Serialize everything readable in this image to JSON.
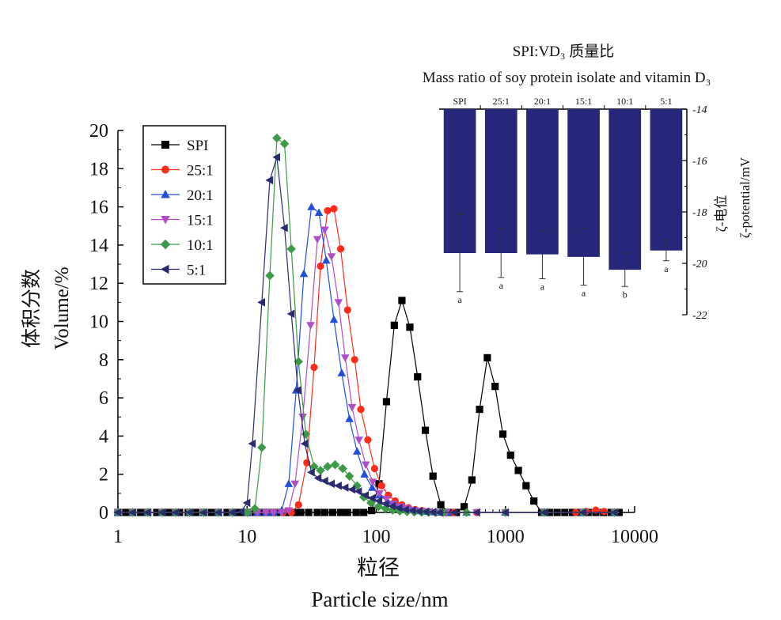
{
  "chart_data": [
    {
      "type": "line",
      "xlabel_zh": "粒径",
      "xlabel": "Particle size/nm",
      "ylabel_zh": "体积分数",
      "ylabel": "Volume/%",
      "xscale": "log",
      "xlim": [
        1,
        10000
      ],
      "ylim": [
        0,
        20
      ],
      "xticks": [
        "1",
        "10",
        "100",
        "1000",
        "10000"
      ],
      "yticks": [
        "0",
        "2",
        "4",
        "6",
        "8",
        "10",
        "12",
        "14",
        "16",
        "18",
        "20"
      ],
      "legend": "top-left",
      "series": [
        {
          "name": "SPI",
          "color": "#000000",
          "marker": "square",
          "x": [
            1,
            1.15,
            1.3,
            1.5,
            1.7,
            2,
            2.3,
            2.6,
            3,
            3.5,
            4,
            4.6,
            5.3,
            6,
            7,
            8,
            9,
            10,
            11.5,
            13,
            15,
            17,
            20,
            23,
            26,
            30,
            35,
            40,
            46,
            53,
            60,
            70,
            80,
            92,
            105,
            120,
            138,
            158,
            182,
            209,
            240,
            275,
            316,
            363,
            417,
            479,
            550,
            631,
            724,
            832,
            955,
            1096,
            1259,
            1445,
            1660,
            1905,
            2188,
            2512,
            2884,
            3311,
            3802,
            4365,
            5012,
            5754,
            6607,
            7586
          ],
          "y": [
            0,
            0,
            0,
            0,
            0,
            0,
            0,
            0,
            0,
            0,
            0,
            0,
            0,
            0,
            0,
            0,
            0,
            0,
            0,
            0,
            0,
            0,
            0,
            0,
            0,
            0,
            0,
            0,
            0,
            0,
            0,
            0,
            0,
            0.1,
            1.5,
            5.8,
            9.8,
            11.1,
            9.7,
            7.1,
            4.3,
            1.9,
            0.4,
            0,
            0,
            0.3,
            1.7,
            5.4,
            8.1,
            6.6,
            4.1,
            3,
            2.2,
            1.4,
            0.6,
            0,
            0,
            0,
            0,
            0,
            0,
            0,
            0,
            0,
            0,
            0
          ]
        },
        {
          "name": "25:1",
          "color": "#ff2a1a",
          "marker": "circle",
          "x": [
            1,
            1.3,
            1.7,
            2.2,
            2.8,
            3.6,
            4.6,
            6,
            7.7,
            10,
            12,
            14,
            16,
            19,
            22,
            25,
            29,
            33,
            37,
            42,
            47,
            53,
            60,
            68,
            76,
            86,
            97,
            110,
            124,
            140,
            158,
            178,
            200,
            225,
            254,
            287,
            323,
            400,
            600,
            1000,
            2000,
            3500,
            4200,
            5000,
            5800,
            7000
          ],
          "y": [
            0,
            0,
            0,
            0,
            0,
            0,
            0,
            0,
            0,
            0,
            0,
            0,
            0,
            0,
            0,
            0.4,
            2.6,
            7.6,
            12.9,
            15.8,
            15.9,
            13.8,
            10.6,
            8,
            5.4,
            3.8,
            2.3,
            1.4,
            0.9,
            0.6,
            0.4,
            0.25,
            0.15,
            0.1,
            0.05,
            0,
            0,
            0,
            0,
            0,
            0,
            0,
            0.05,
            0.12,
            0.05,
            0
          ]
        },
        {
          "name": "20:1",
          "color": "#2050d8",
          "marker": "triangle-up",
          "x": [
            1,
            1.3,
            1.7,
            2.2,
            2.8,
            3.6,
            4.6,
            6,
            7.7,
            10,
            12,
            14,
            16,
            18.5,
            21,
            24,
            27.5,
            31.5,
            36,
            41,
            47,
            54,
            62,
            71,
            81,
            93,
            106,
            122,
            139,
            159,
            182,
            208,
            238,
            272,
            311,
            356,
            500,
            1000,
            2000,
            4000,
            7000
          ],
          "y": [
            0,
            0,
            0,
            0,
            0,
            0,
            0,
            0,
            0,
            0,
            0,
            0,
            0,
            0.1,
            1.5,
            6.4,
            12.5,
            16,
            15.7,
            13.2,
            10.1,
            7.3,
            4.9,
            3.2,
            2,
            1.3,
            0.9,
            0.6,
            0.4,
            0.25,
            0.15,
            0.08,
            0.04,
            0.02,
            0,
            0,
            0,
            0,
            0,
            0,
            0
          ]
        },
        {
          "name": "15:1",
          "color": "#b04ec8",
          "marker": "triangle-down",
          "x": [
            1,
            1.3,
            1.7,
            2.2,
            2.8,
            3.6,
            4.6,
            6,
            7.7,
            10,
            12,
            14,
            16,
            18.5,
            21,
            23.5,
            27,
            31,
            35,
            40,
            45,
            51,
            57.5,
            65,
            73.5,
            83,
            94,
            106,
            120,
            136,
            154,
            174,
            197,
            223,
            252,
            285,
            350,
            600,
            1000,
            2000,
            4000,
            7000
          ],
          "y": [
            0,
            0,
            0,
            0,
            0,
            0,
            0,
            0,
            0,
            0,
            0,
            0,
            0,
            0,
            0.1,
            1.5,
            5,
            9.8,
            14.3,
            14.8,
            13.4,
            11,
            8.1,
            5.5,
            3.8,
            2.5,
            1.6,
            1,
            0.7,
            0.45,
            0.3,
            0.2,
            0.12,
            0.06,
            0.03,
            0,
            0,
            0,
            0,
            0,
            0,
            0
          ]
        },
        {
          "name": "10:1",
          "color": "#3c9a46",
          "marker": "diamond",
          "x": [
            1,
            1.3,
            1.7,
            2.2,
            2.8,
            3.6,
            4.6,
            6,
            7.7,
            10,
            11.5,
            13,
            15,
            17,
            19.5,
            22,
            25,
            28.5,
            33,
            37,
            42,
            48,
            55,
            62,
            71,
            80,
            91,
            104,
            118,
            134,
            152,
            173,
            197,
            224,
            254,
            289,
            330,
            500,
            1000,
            2000,
            4000,
            7000
          ],
          "y": [
            0,
            0,
            0,
            0,
            0,
            0,
            0,
            0,
            0,
            0,
            0.2,
            3.4,
            12.4,
            19.6,
            19.3,
            13.8,
            7.9,
            4.1,
            2.4,
            2.2,
            2.4,
            2.5,
            2.3,
            1.9,
            1.4,
            0.8,
            0.5,
            0.3,
            0.2,
            0.12,
            0.07,
            0.04,
            0.02,
            0.01,
            0,
            0,
            0,
            0,
            0,
            0,
            0,
            0
          ]
        },
        {
          "name": "5:1",
          "color": "#2a2a6e",
          "marker": "triangle-left",
          "x": [
            1,
            1.3,
            1.7,
            2.2,
            2.8,
            3.6,
            4.6,
            6,
            7.7,
            9,
            10,
            11,
            13,
            15,
            17,
            19.5,
            22,
            24.8,
            28,
            31.5,
            35.5,
            40,
            45,
            51,
            57.5,
            65,
            73,
            82.5,
            93,
            105,
            118,
            133,
            150,
            169,
            191,
            215,
            243,
            275,
            310,
            400,
            600,
            1000,
            2000,
            4000,
            7000
          ],
          "y": [
            0,
            0,
            0,
            0,
            0,
            0,
            0,
            0,
            0,
            0.05,
            0.5,
            3.6,
            11,
            17.4,
            18.6,
            14.9,
            10.4,
            6.4,
            3.6,
            2.1,
            1.8,
            1.65,
            1.5,
            1.4,
            1.3,
            1.2,
            1.1,
            0.9,
            0.75,
            0.6,
            0.45,
            0.33,
            0.23,
            0.15,
            0.1,
            0.06,
            0.04,
            0.02,
            0,
            0,
            0,
            0,
            0,
            0,
            0
          ]
        }
      ]
    },
    {
      "type": "bar",
      "title_zh": "SPI:VD₃ 质量比",
      "title": "Mass ratio of soy protein isolate and vitamin D₃",
      "ylabel_zh": "ζ-电位",
      "ylabel": "ζ-potential/mV",
      "ylim": [
        -22,
        -14
      ],
      "yticks": [
        "-14",
        "-16",
        "-18",
        "-20",
        "-22"
      ],
      "bar_color": "#25277a",
      "categories": [
        "SPI",
        "25:1",
        "20:1",
        "15:1",
        "10:1",
        "5:1"
      ],
      "values": [
        -19.6,
        -19.6,
        -19.65,
        -19.75,
        -20.25,
        -19.5
      ],
      "errors": [
        1.5,
        0.95,
        0.95,
        1.1,
        0.65,
        0.4
      ],
      "significance": [
        "a",
        "a",
        "a",
        "a",
        "b",
        "a"
      ]
    }
  ]
}
